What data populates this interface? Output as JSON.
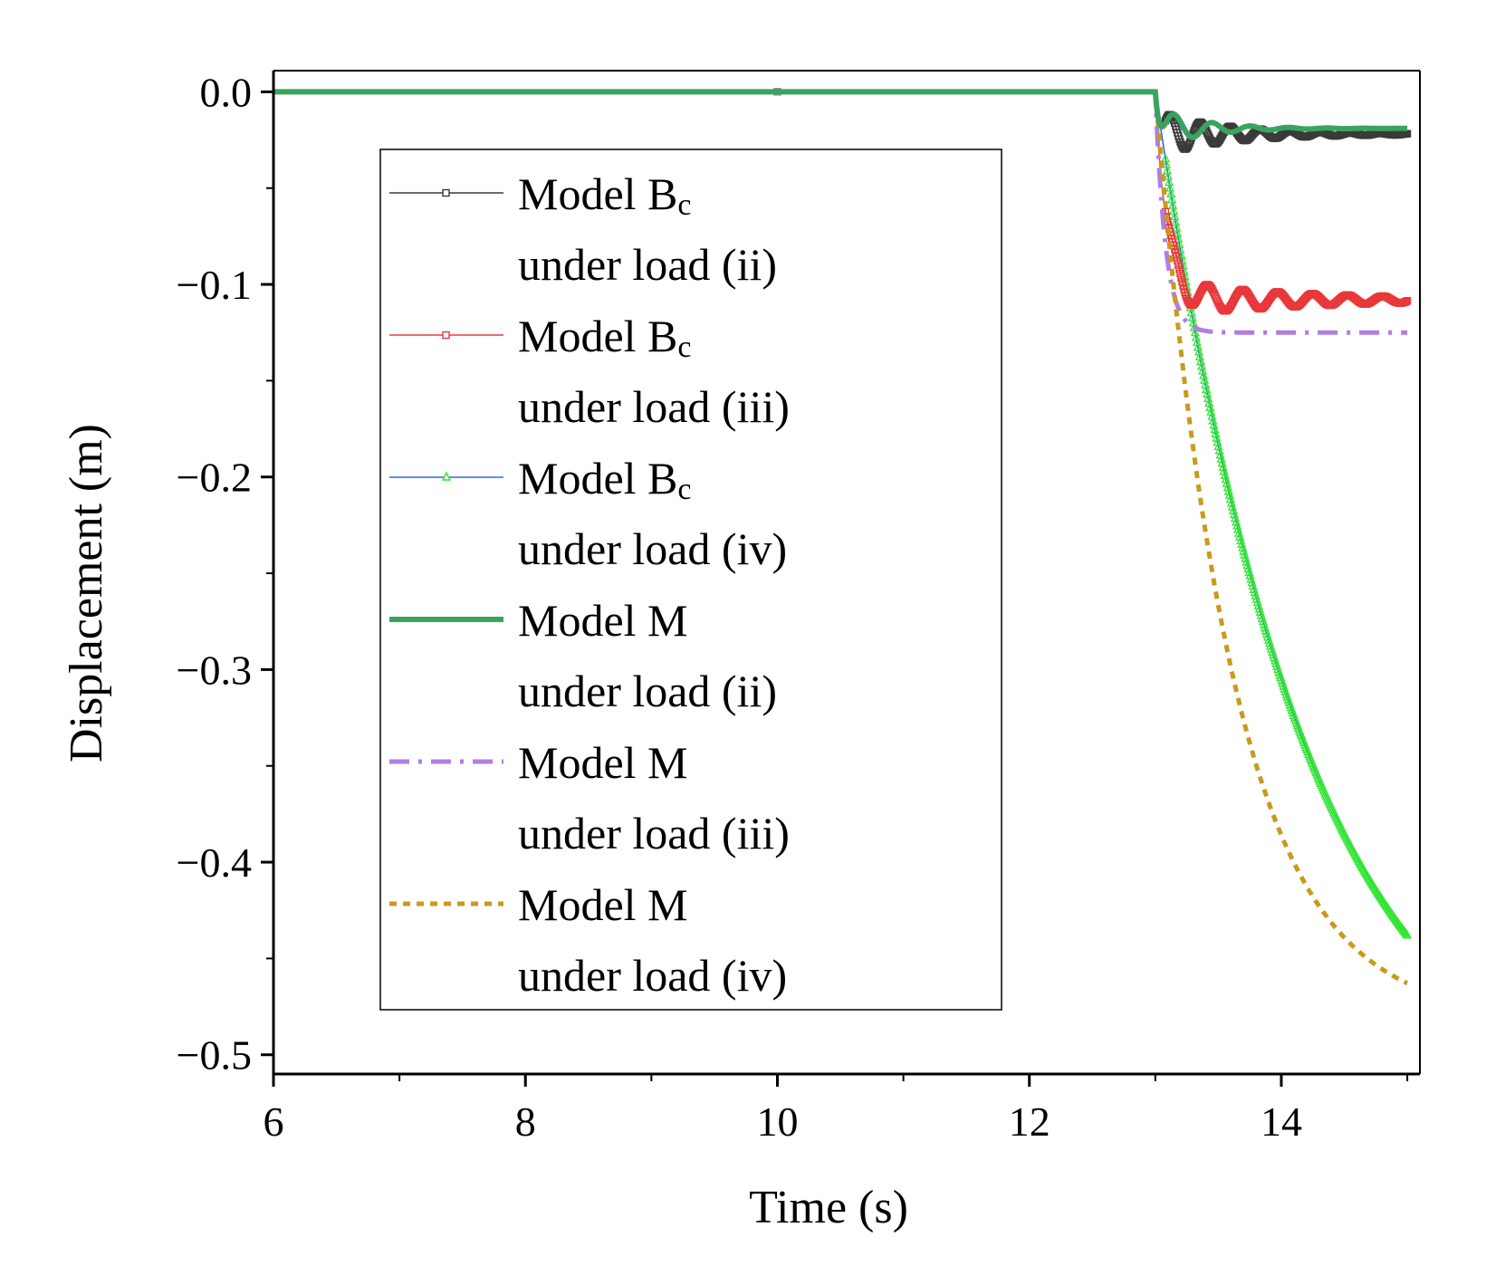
{
  "chart_data": {
    "type": "line",
    "xlabel": "Time (s)",
    "ylabel": "Displacement (m)",
    "xlim": [
      6,
      15.1
    ],
    "ylim": [
      -0.51,
      0.011
    ],
    "x_ticks": [
      6,
      8,
      10,
      12,
      14
    ],
    "x_tick_labels": [
      "6",
      "8",
      "10",
      "12",
      "14"
    ],
    "x_minor_ticks": [
      7,
      9,
      11,
      13,
      15
    ],
    "y_ticks": [
      0.0,
      -0.1,
      -0.2,
      -0.3,
      -0.4,
      -0.5
    ],
    "y_tick_labels": [
      "0.0",
      "−0.1",
      "−0.2",
      "−0.3",
      "−0.4",
      "−0.5"
    ],
    "y_minor_ticks": [
      -0.05,
      -0.15,
      -0.25,
      -0.35,
      -0.45
    ],
    "grid": false,
    "legend_position": "upper-left-inside",
    "series": [
      {
        "name": "Model Bc under load (ii)",
        "legend_line1": "Model B",
        "legend_sub": "c",
        "legend_line2": "under load (ii)",
        "color": "#3a3a3a",
        "style": "thin-square-markers",
        "model": {
          "kind": "oscillate",
          "t0": 13.0,
          "settle": -0.022,
          "overshoot": -0.012,
          "amp": 0.012,
          "freq": 4.2,
          "tau": 0.55,
          "dropTau": 0.035
        }
      },
      {
        "name": "Model Bc under load (iii)",
        "legend_line1": "Model B",
        "legend_sub": "c",
        "legend_line2": "under load (iii)",
        "color": "#e8383b",
        "style": "thin-square-markers",
        "model": {
          "kind": "oscillate",
          "t0": 13.0,
          "settle": -0.108,
          "overshoot": -0.014,
          "amp": 0.01,
          "freq": 3.6,
          "tau": 1.1,
          "dropTau": 0.09
        }
      },
      {
        "name": "Model Bc under load (iv)",
        "legend_line1": "Model B",
        "legend_sub": "c",
        "legend_line2": "under load (iv)",
        "color": "#2a6fd6",
        "marker_color": "#33e633",
        "style": "thin-triangle-markers",
        "model": {
          "kind": "exp",
          "t0": 13.0,
          "final": -0.54,
          "tau": 1.2
        }
      },
      {
        "name": "Model M under load (ii)",
        "legend_line1": "Model M",
        "legend_sub": "",
        "legend_line2": "under load (ii)",
        "color": "#3aa35f",
        "style": "thick-solid",
        "model": {
          "kind": "oscillate",
          "t0": 13.0,
          "settle": -0.019,
          "overshoot": -0.01,
          "amp": 0.011,
          "freq": 3.3,
          "tau": 0.35,
          "dropTau": 0.035
        }
      },
      {
        "name": "Model M under load (iii)",
        "legend_line1": "Model M",
        "legend_sub": "",
        "legend_line2": "under load (iii)",
        "color": "#b07ee0",
        "style": "thick-dashdot",
        "model": {
          "kind": "settle",
          "t0": 13.0,
          "final": -0.125,
          "tau": 0.08
        }
      },
      {
        "name": "Model M under load (iv)",
        "legend_line1": "Model M",
        "legend_sub": "",
        "legend_line2": "under load (iv)",
        "color": "#c99a1e",
        "style": "thick-dotted",
        "model": {
          "kind": "exp",
          "t0": 13.0,
          "final": -0.482,
          "tau": 0.62
        }
      }
    ]
  }
}
